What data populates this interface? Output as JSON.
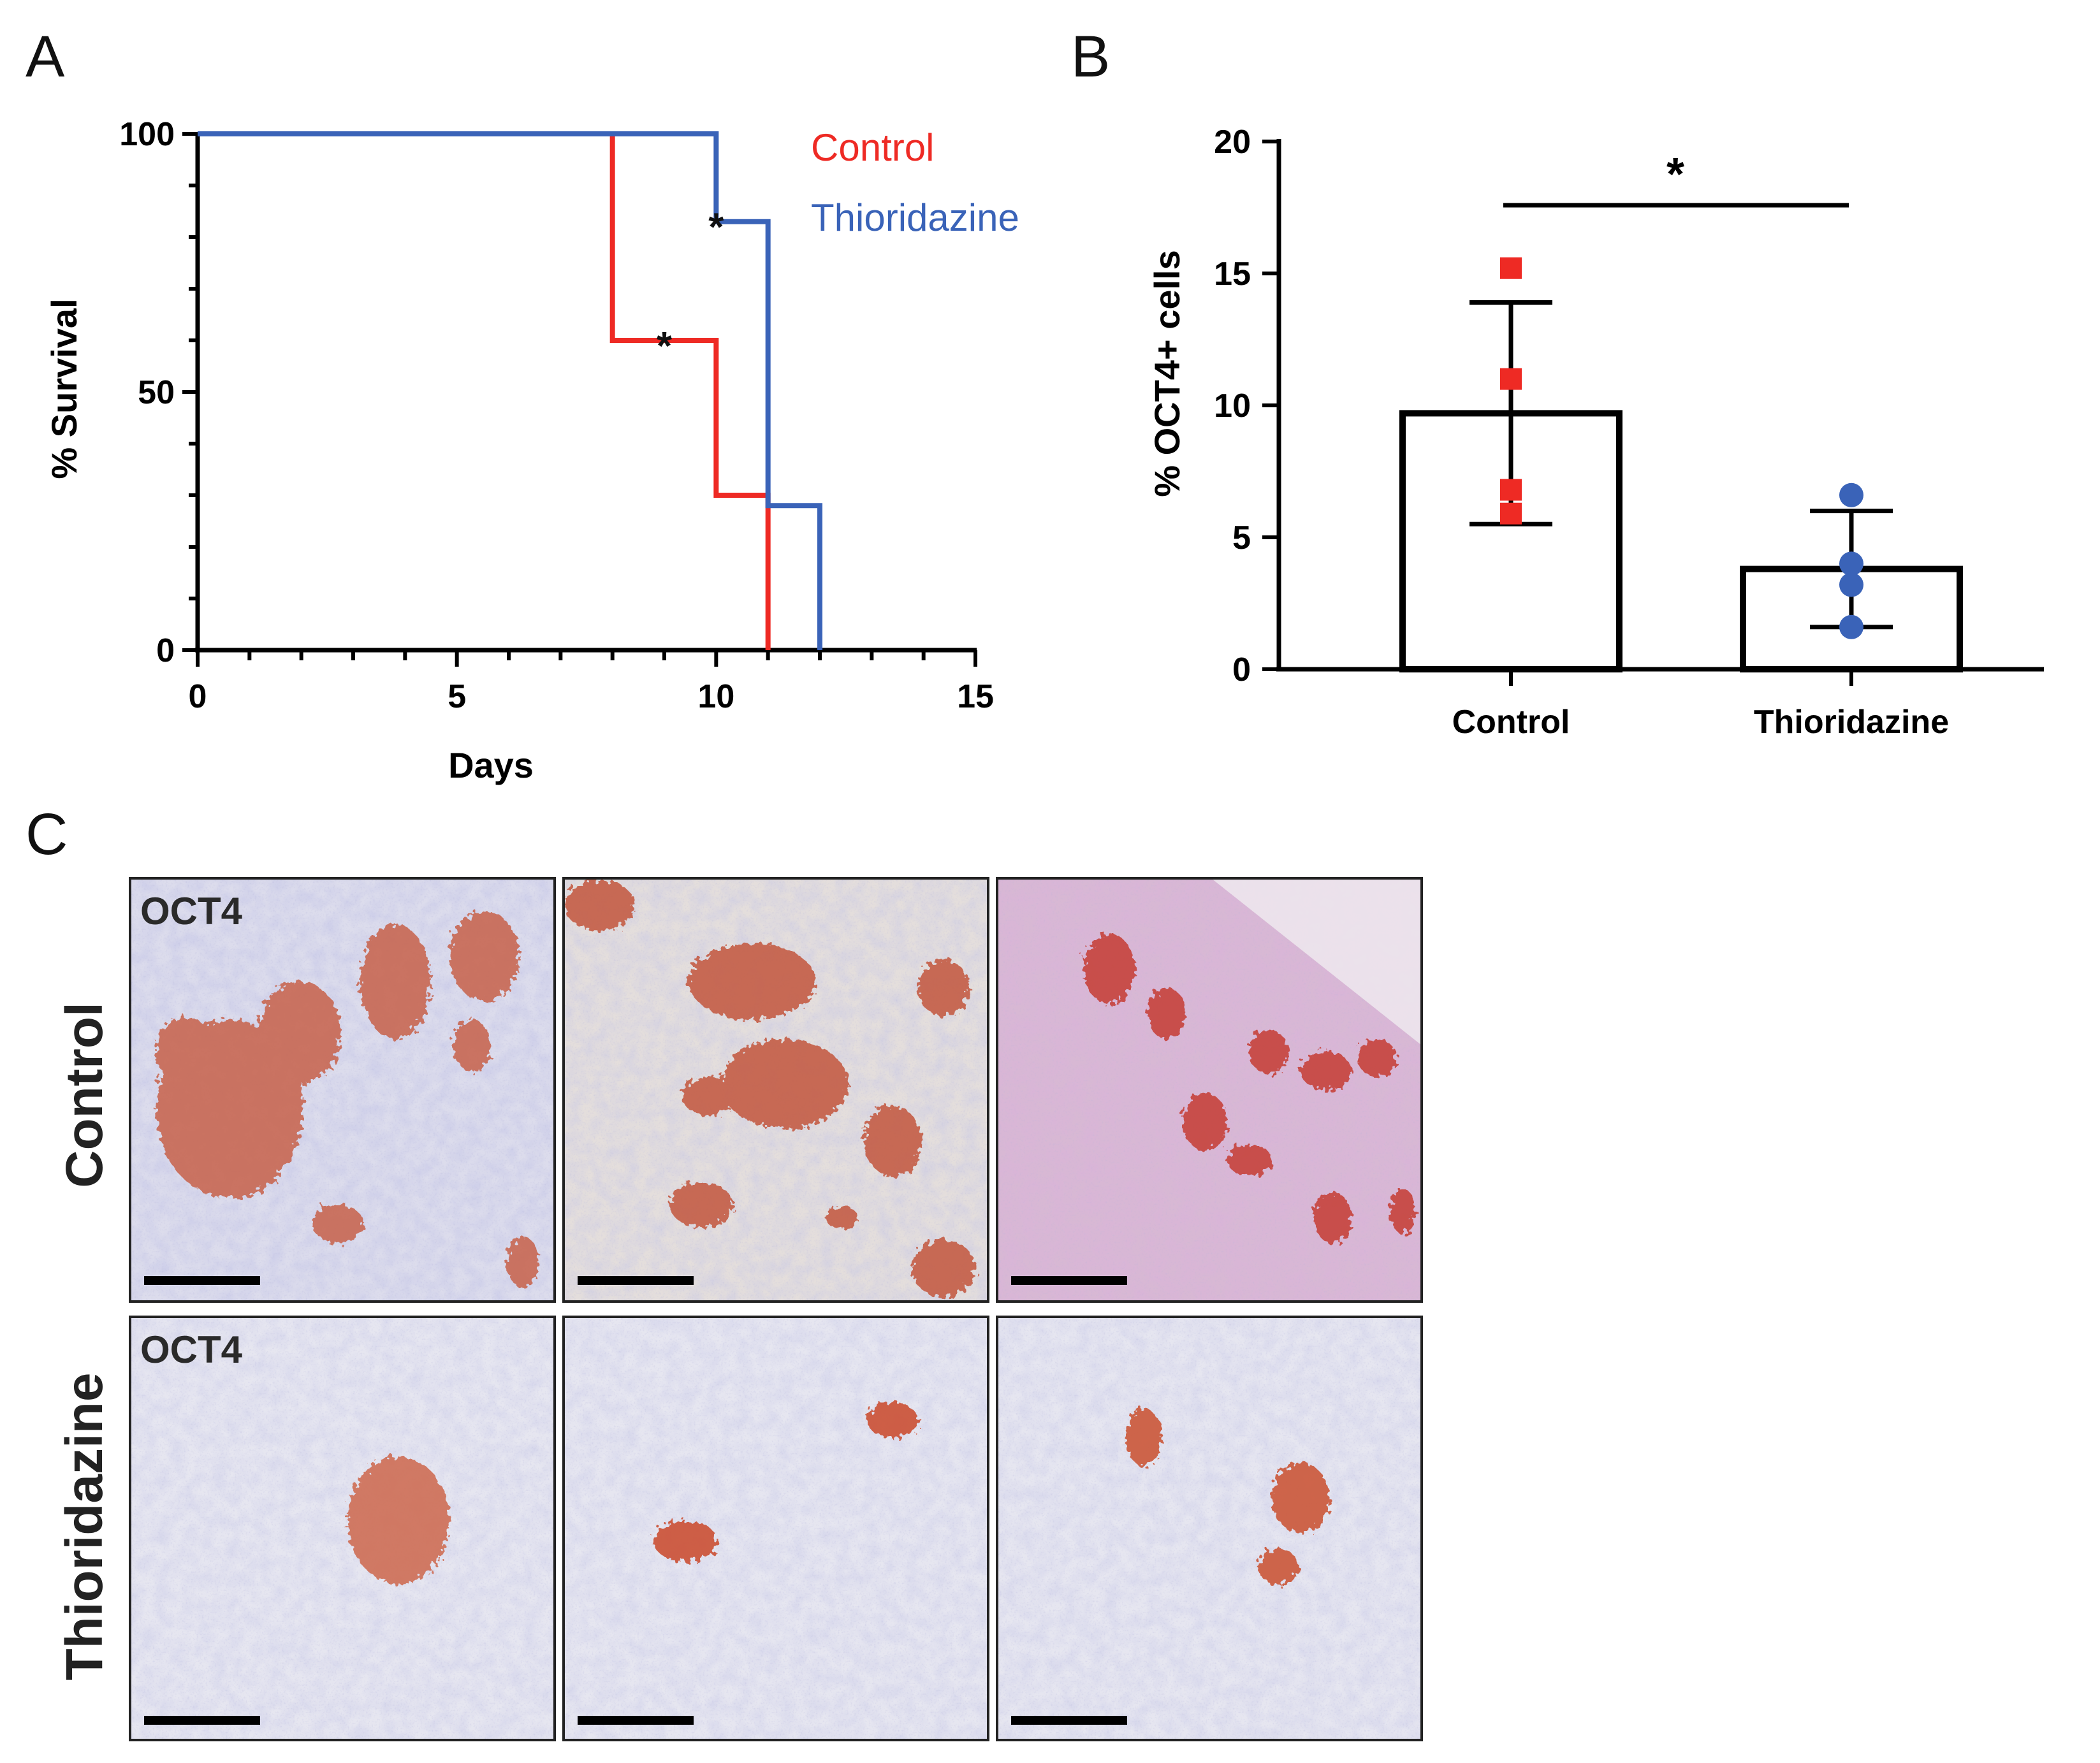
{
  "panels": {
    "a": "A",
    "b": "B",
    "c": "C"
  },
  "chart_data": [
    {
      "type": "line",
      "subtype": "kaplan-meier",
      "xlabel": "Days",
      "ylabel": "% Survival",
      "xlim": [
        0,
        15
      ],
      "ylim": [
        0,
        100
      ],
      "xticks": [
        0,
        5,
        10,
        15
      ],
      "yticks": [
        0,
        50,
        100
      ],
      "legend_position": "top-right",
      "series": [
        {
          "name": "Control",
          "color": "#ee2a24",
          "steps": [
            [
              0,
              100
            ],
            [
              8,
              100
            ],
            [
              8,
              60
            ],
            [
              10,
              60
            ],
            [
              10,
              30
            ],
            [
              11,
              30
            ],
            [
              11,
              0
            ]
          ],
          "censored": [
            [
              9,
              60
            ]
          ]
        },
        {
          "name": "Thioridazine",
          "color": "#3a63b8",
          "steps": [
            [
              0,
              100
            ],
            [
              10,
              100
            ],
            [
              10,
              83
            ],
            [
              11,
              83
            ],
            [
              11,
              28
            ],
            [
              12,
              28
            ],
            [
              12,
              0
            ]
          ],
          "censored": [
            [
              10,
              83
            ]
          ]
        }
      ]
    },
    {
      "type": "bar",
      "ylabel": "% OCT4+ cells",
      "ylim": [
        0,
        20
      ],
      "yticks": [
        0,
        5,
        10,
        15,
        20
      ],
      "categories": [
        "Control",
        "Thioridazine"
      ],
      "values": [
        9.7,
        3.8
      ],
      "sd": [
        4.2,
        2.2
      ],
      "points": [
        [
          15.2,
          11.0,
          6.8,
          5.9
        ],
        [
          6.6,
          4.0,
          3.2,
          1.6
        ]
      ],
      "point_colors": [
        "#ee2a24",
        "#3a63b8"
      ],
      "point_shapes": [
        "square",
        "circle"
      ],
      "significance": "*"
    }
  ],
  "panel_c": {
    "rows": [
      "Control",
      "Thioridazine"
    ],
    "stain_label": "OCT4"
  }
}
